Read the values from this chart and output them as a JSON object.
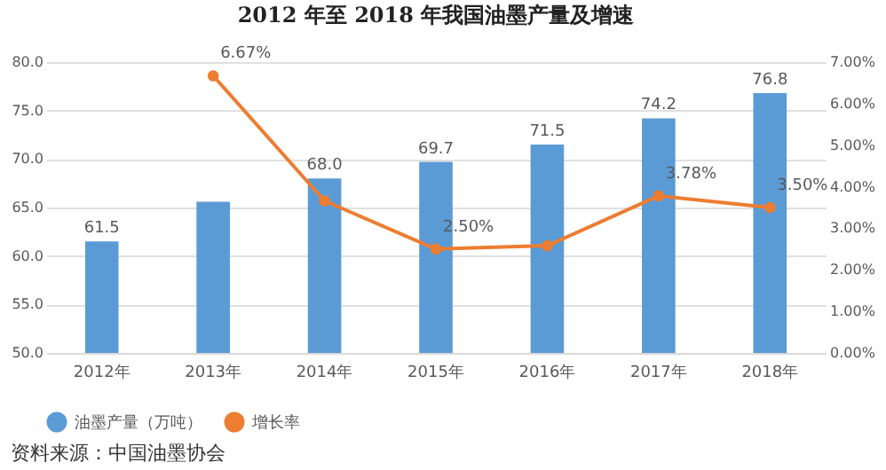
{
  "chart_data": {
    "type": "bar",
    "title": "2012 年至 2018 年我国油墨产量及增速",
    "categories": [
      "2012年",
      "2013年",
      "2014年",
      "2015年",
      "2016年",
      "2017年",
      "2018年"
    ],
    "series": [
      {
        "name": "油墨产量（万吨）",
        "color": "#5b9bd5",
        "values": [
          61.5,
          65.6,
          68.0,
          69.7,
          71.5,
          74.2,
          76.8
        ],
        "value_labels": [
          "61.5",
          null,
          "68.0",
          "69.7",
          "71.5",
          "74.2",
          "76.8"
        ]
      },
      {
        "name": "增长率",
        "type": "line",
        "axis": "y2",
        "color": "#ed7d31",
        "marker": "circle",
        "values": [
          null,
          6.67,
          3.66,
          2.5,
          2.58,
          3.78,
          3.5
        ],
        "value_labels": [
          null,
          "6.67%",
          null,
          "2.50%",
          null,
          "3.78%",
          "3.50%"
        ]
      }
    ],
    "ylim": [
      50,
      80
    ],
    "yticks": [
      {
        "value": 50,
        "label": "50.0"
      },
      {
        "value": 55,
        "label": "55.0"
      },
      {
        "value": 60,
        "label": "60.0"
      },
      {
        "value": 65,
        "label": "65.0"
      },
      {
        "value": 70,
        "label": "70.0"
      },
      {
        "value": 75,
        "label": "75.0"
      },
      {
        "value": 80,
        "label": "80.0"
      }
    ],
    "y2lim": [
      0,
      7
    ],
    "y2ticks": [
      {
        "value": 0,
        "label": "0.00%"
      },
      {
        "value": 1,
        "label": "1.00%"
      },
      {
        "value": 2,
        "label": "2.00%"
      },
      {
        "value": 3,
        "label": "3.00%"
      },
      {
        "value": 4,
        "label": "4.00%"
      },
      {
        "value": 5,
        "label": "5.00%"
      },
      {
        "value": 6,
        "label": "6.00%"
      },
      {
        "value": 7,
        "label": "7.00%"
      }
    ],
    "grid": "y",
    "legend": "bottom",
    "annotations": [
      "资料来源：中国油墨协会"
    ]
  }
}
